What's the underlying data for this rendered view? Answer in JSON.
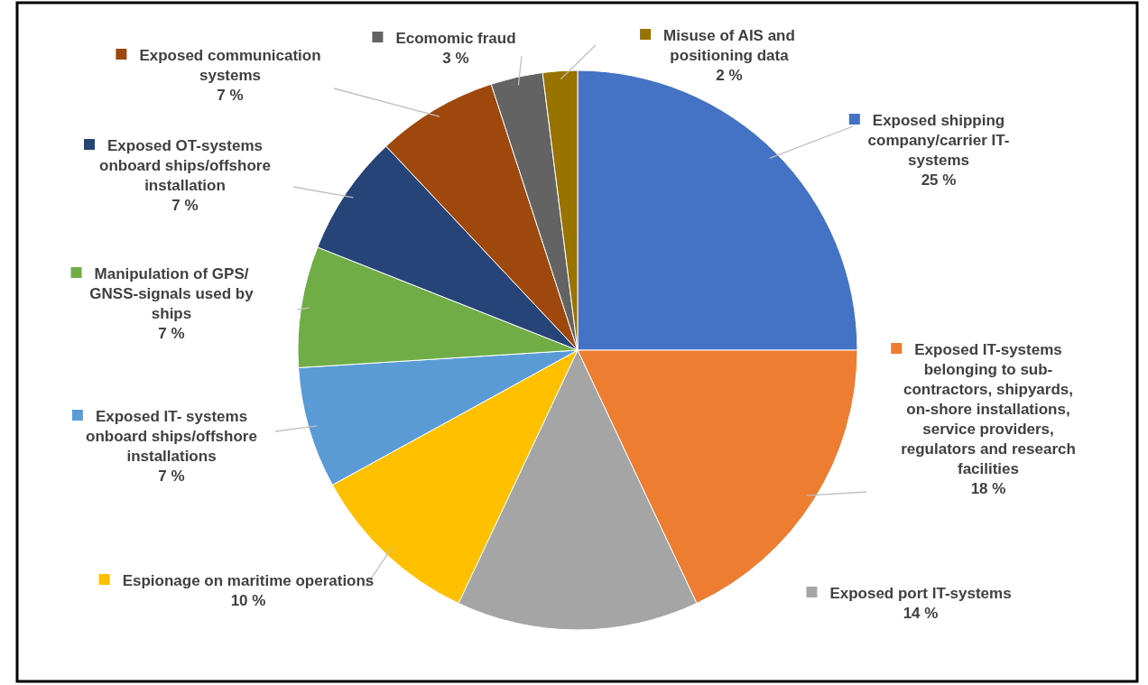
{
  "chart_data": {
    "type": "pie",
    "categories": [
      "Exposed shipping company/carrier IT-systems",
      "Exposed IT-systems belonging to sub-contractors, shipyards, on-shore installations, service providers, regulators and research facilities",
      "Exposed port IT-systems",
      "Espionage on maritime operations",
      "Exposed IT- systems onboard ships/offshore installations",
      "Manipulation of GPS/GNSS-signals used by ships",
      "Exposed  OT-systems onboard ships/offshore installation",
      "Exposed communication systems",
      "Ecomomic fraud",
      "Misuse of AIS and positioning data"
    ],
    "values": [
      25,
      18,
      14,
      10,
      7,
      7,
      7,
      7,
      3,
      2
    ],
    "value_labels": [
      "25 %",
      "18 %",
      "14 %",
      "10 %",
      "7 %",
      "7 %",
      "7 %",
      "7 %",
      "3 %",
      "2 %"
    ],
    "legend": "left",
    "colors": [
      "#4472c4",
      "#ed7d31",
      "#a5a5a5",
      "#ffc000",
      "#5b9bd5",
      "#70ad47",
      "#264478",
      "#9e480e",
      "#636363",
      "#997300"
    ]
  }
}
